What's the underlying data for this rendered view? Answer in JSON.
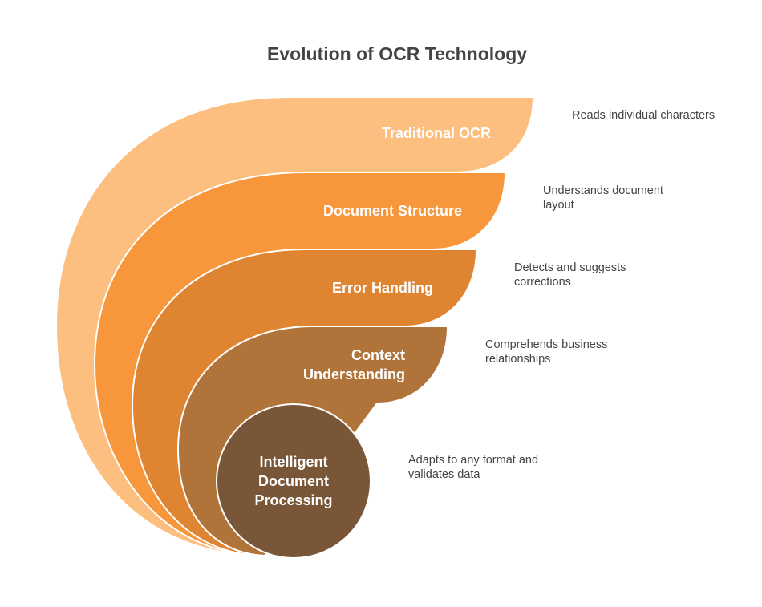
{
  "title": "Evolution of OCR Technology",
  "layers": [
    {
      "label": "Traditional OCR",
      "description": "Reads individual characters"
    },
    {
      "label": "Document Structure",
      "description": "Understands document layout"
    },
    {
      "label": "Error Handling",
      "description": "Detects and suggests corrections"
    },
    {
      "label": "Context Understanding",
      "description": "Comprehends business relationships"
    },
    {
      "label": "Intelligent Document Processing",
      "description": "Adapts to any format and validates data"
    }
  ]
}
